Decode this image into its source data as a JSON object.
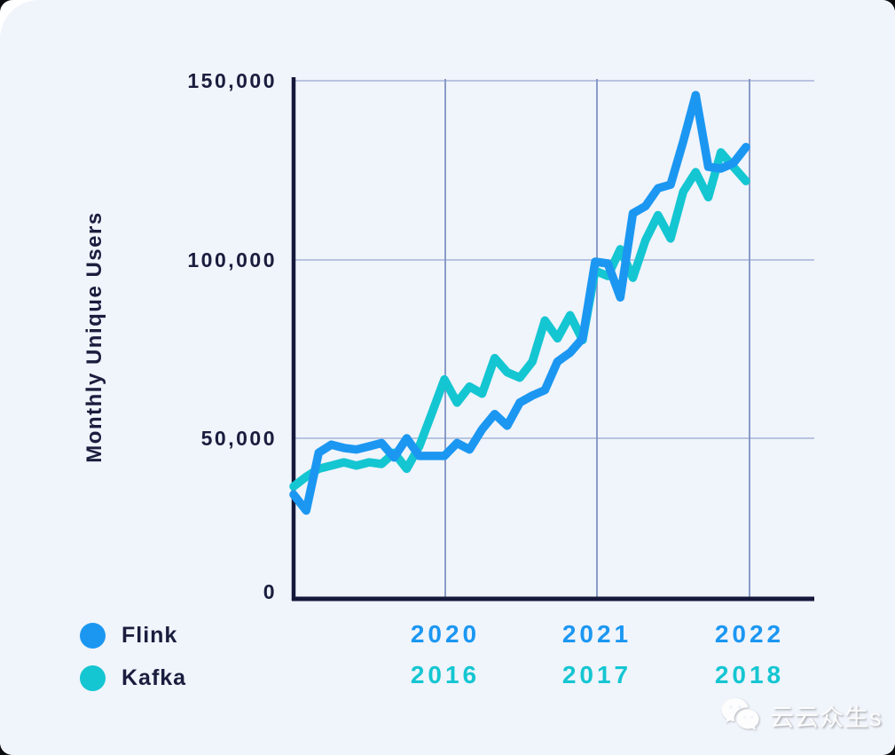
{
  "y_axis": {
    "title": "Monthly Unique Users",
    "ticks": [
      "150,000",
      "100,000",
      "50,000",
      "0"
    ]
  },
  "x_axis": {
    "flink_years": [
      "2020",
      "2021",
      "2022"
    ],
    "kafka_years": [
      "2016",
      "2017",
      "2018"
    ]
  },
  "legend": [
    {
      "label": "Flink",
      "color": "#1B97F2"
    },
    {
      "label": "Kafka",
      "color": "#14C6D1"
    }
  ],
  "watermark": {
    "text": "云云众生s",
    "icon": "wechat-icon"
  },
  "colors": {
    "flink_line": "#1B97F2",
    "kafka_line": "#14C6D1",
    "axis": "#15183A",
    "text": "#1A1D3D",
    "grid_vertical": "#7E92C2",
    "grid_horizontal": "#A6B3D7",
    "card_background": "#F0F4FB"
  },
  "chart_data": {
    "type": "line",
    "title": "",
    "xlabel": "",
    "ylabel": "Monthly Unique Users",
    "ylim": [
      0,
      150000
    ],
    "y_gridlines": [
      50000,
      100000,
      150000
    ],
    "grid": true,
    "legend_position": "bottom-left",
    "x_note": "monthly points over 3 years; Flink series spans 2019-2022 (year gridlines 2020/2021/2022), Kafka series time-shifted spanning 2015-2018 (gridlines 2016/2017/2018)",
    "x_months": [
      0,
      1,
      2,
      3,
      4,
      5,
      6,
      7,
      8,
      9,
      10,
      11,
      12,
      13,
      14,
      15,
      16,
      17,
      18,
      19,
      20,
      21,
      22,
      23,
      24,
      25,
      26,
      27,
      28,
      29,
      30,
      31,
      32,
      33,
      34,
      35,
      36
    ],
    "year_gridline_months": [
      12,
      24,
      36
    ],
    "series": [
      {
        "name": "Kafka",
        "color": "#14C6D1",
        "values": [
          35000,
          38000,
          40500,
          41500,
          42500,
          41500,
          42500,
          42000,
          45500,
          40500,
          47500,
          57000,
          66500,
          60000,
          64500,
          62500,
          72500,
          68500,
          67000,
          71500,
          83000,
          78000,
          84500,
          77500,
          97000,
          95500,
          103000,
          95000,
          105500,
          112500,
          106000,
          119000,
          124500,
          117500,
          130000,
          126000,
          122000
        ]
      },
      {
        "name": "Flink",
        "color": "#1B97F2",
        "values": [
          32500,
          27500,
          45500,
          48000,
          47000,
          46500,
          47500,
          48500,
          44000,
          50000,
          44500,
          44500,
          44500,
          48500,
          46500,
          52500,
          56800,
          53500,
          60000,
          62000,
          63500,
          71500,
          74000,
          78000,
          99500,
          99000,
          89500,
          113000,
          115000,
          120000,
          121000,
          133000,
          146000,
          126000,
          125500,
          127000,
          131500
        ]
      }
    ]
  }
}
